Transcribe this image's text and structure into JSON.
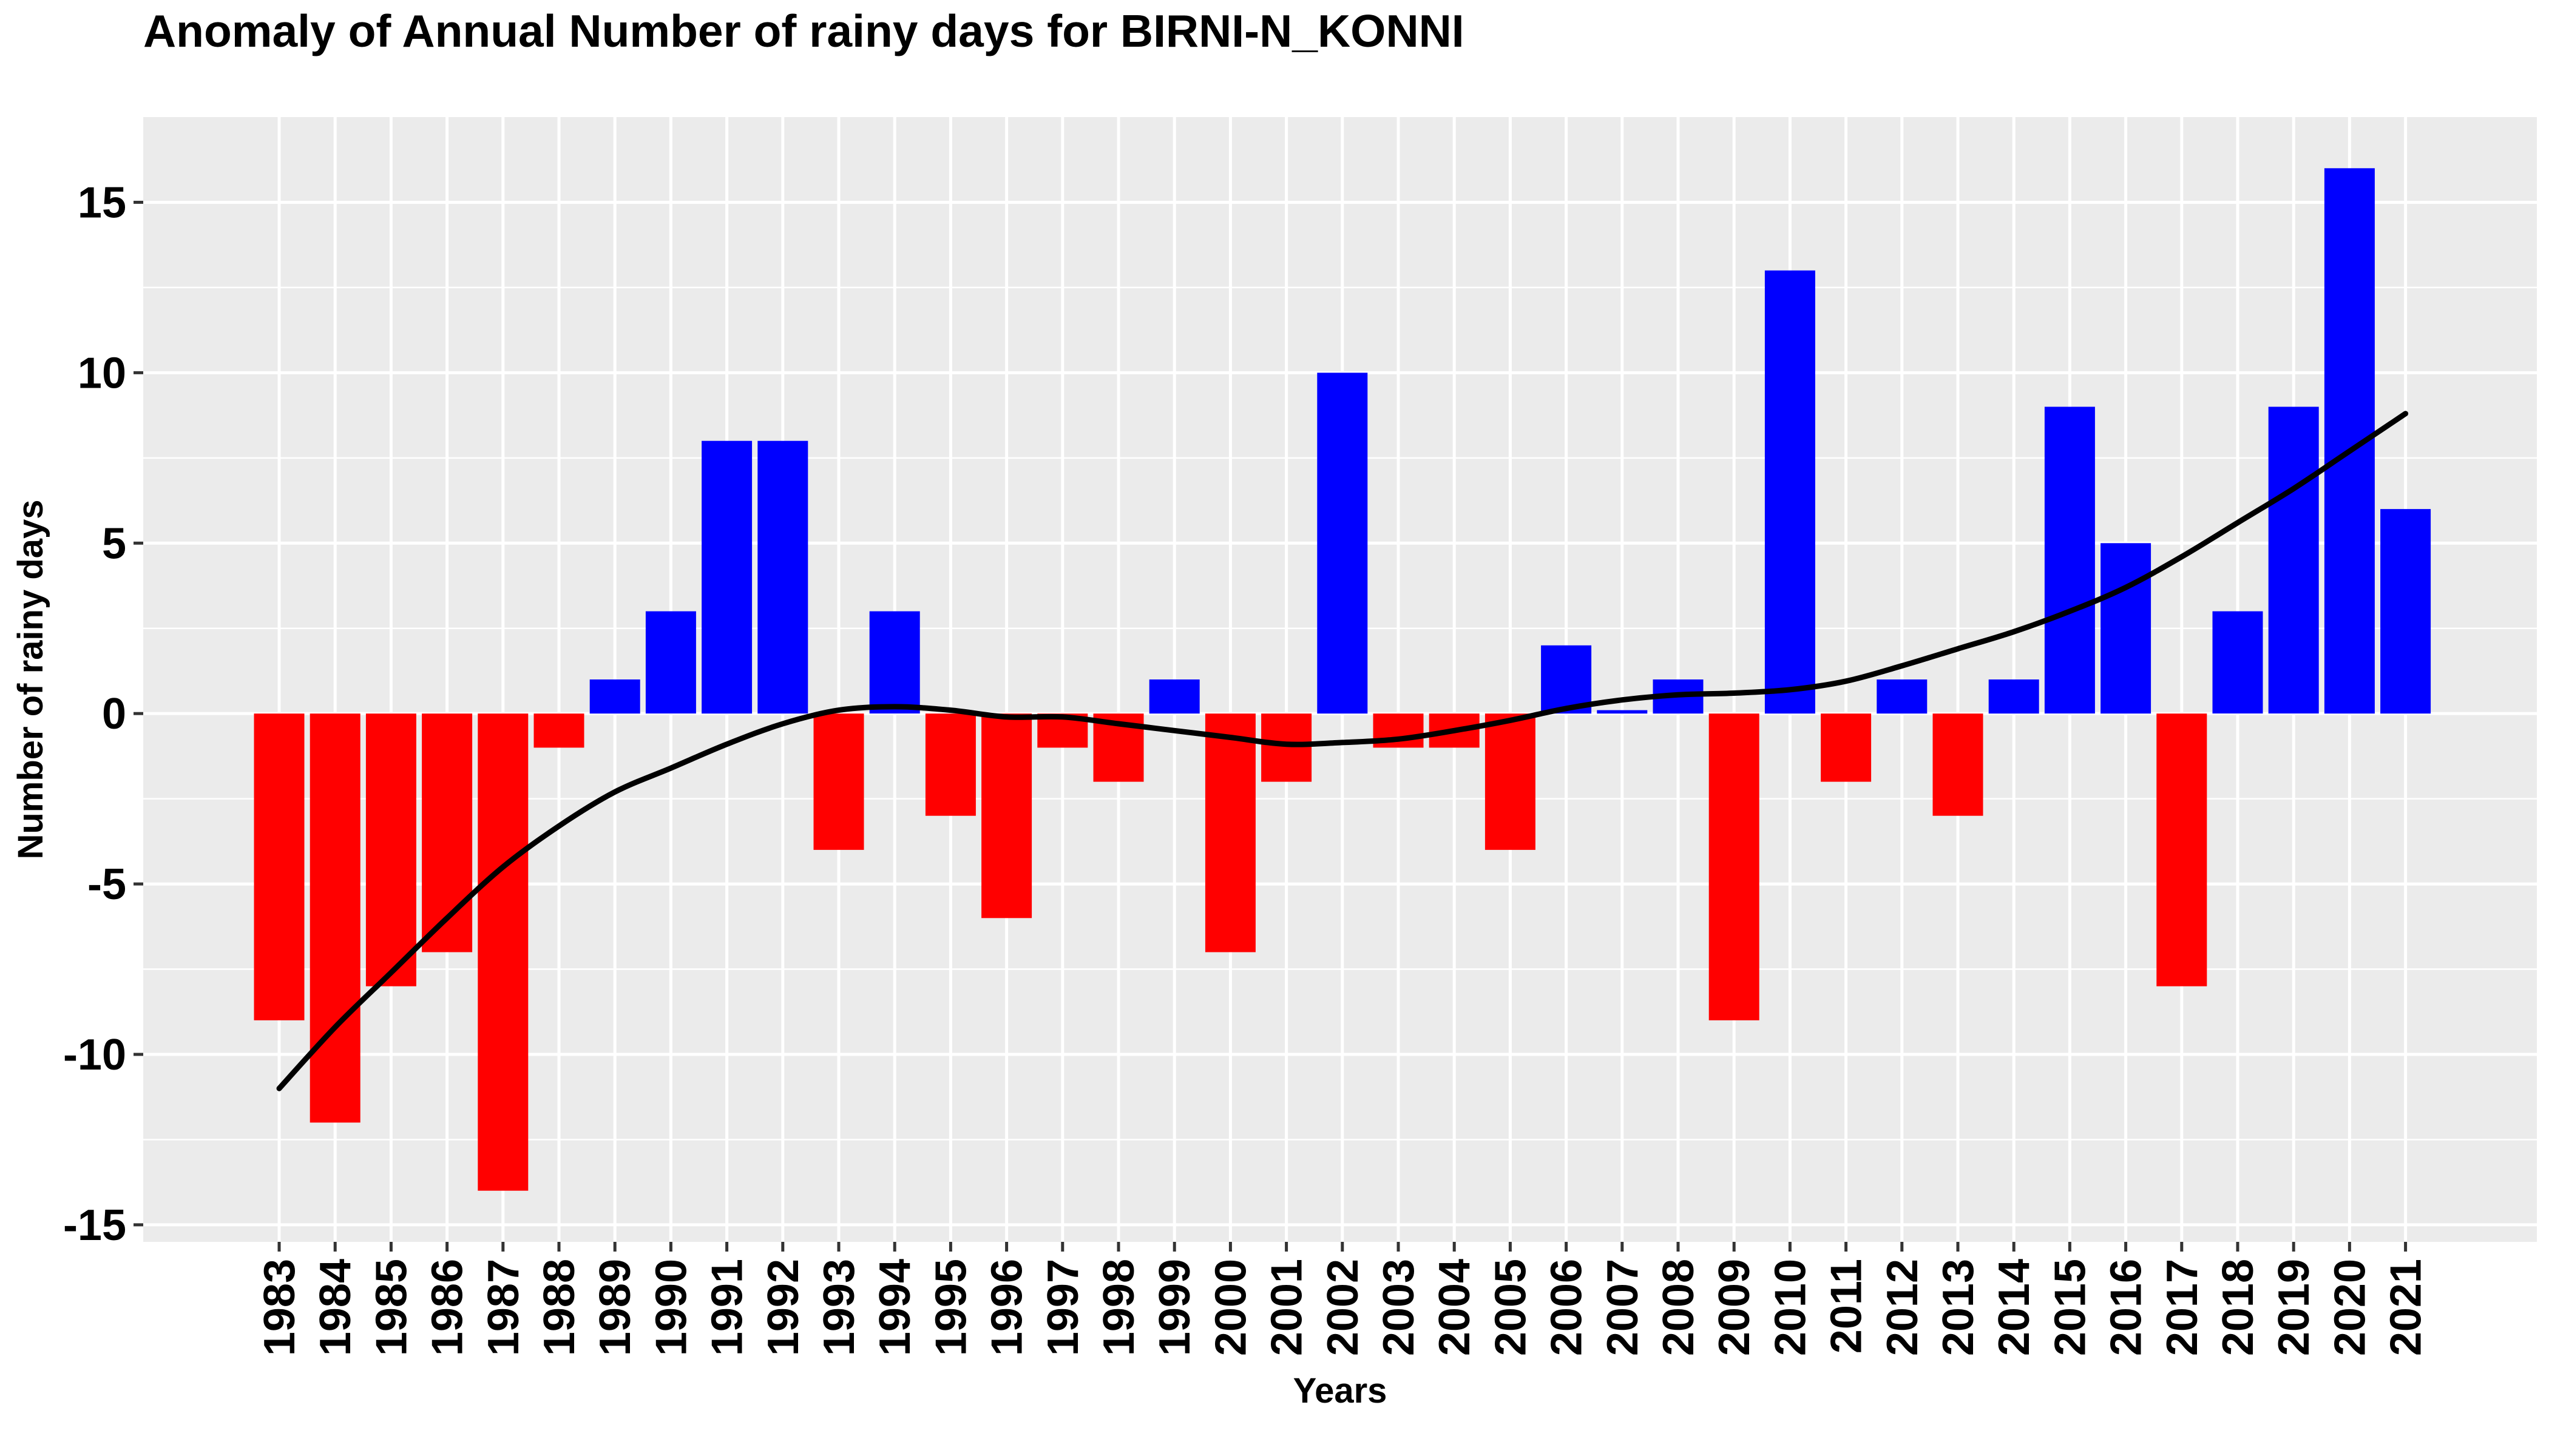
{
  "chart_data": {
    "type": "bar",
    "title": "Anomaly of Annual Number of rainy days for BIRNI-N_KONNI",
    "xlabel": "Years",
    "ylabel": "Number of rainy days",
    "categories": [
      "1983",
      "1984",
      "1985",
      "1986",
      "1987",
      "1988",
      "1989",
      "1990",
      "1991",
      "1992",
      "1993",
      "1994",
      "1995",
      "1996",
      "1997",
      "1998",
      "1999",
      "2000",
      "2001",
      "2002",
      "2003",
      "2004",
      "2005",
      "2006",
      "2007",
      "2008",
      "2009",
      "2010",
      "2011",
      "2012",
      "2013",
      "2014",
      "2015",
      "2016",
      "2017",
      "2018",
      "2019",
      "2020",
      "2021"
    ],
    "values": [
      -9,
      -12,
      -8,
      -7,
      -14,
      -1,
      1,
      3,
      8,
      8,
      -4,
      3,
      -3,
      -6,
      -1,
      -2,
      1,
      -7,
      -2,
      10,
      -1,
      -1,
      -4,
      2,
      0.1,
      1,
      -9,
      13,
      -2,
      1,
      -3,
      1,
      9,
      5,
      -8,
      3,
      9,
      16,
      6
    ],
    "trend": [
      -11,
      -9.2,
      -7.6,
      -6,
      -4.5,
      -3.3,
      -2.3,
      -1.6,
      -0.9,
      -0.3,
      0.1,
      0.2,
      0.1,
      -0.1,
      -0.1,
      -0.3,
      -0.5,
      -0.7,
      -0.9,
      -0.85,
      -0.75,
      -0.5,
      -0.2,
      0.15,
      0.4,
      0.55,
      0.6,
      0.7,
      0.95,
      1.4,
      1.9,
      2.4,
      3,
      3.7,
      4.6,
      5.6,
      6.6,
      7.7,
      8.8
    ],
    "yticks": [
      -15,
      -10,
      -5,
      0,
      5,
      10,
      15
    ],
    "ylim": [
      -15.5,
      17.5
    ],
    "positive_color": "#0000ff",
    "negative_color": "#ff0000",
    "trend_color": "#000000",
    "panel_color": "#ebebeb",
    "grid": true,
    "legend": "none"
  }
}
